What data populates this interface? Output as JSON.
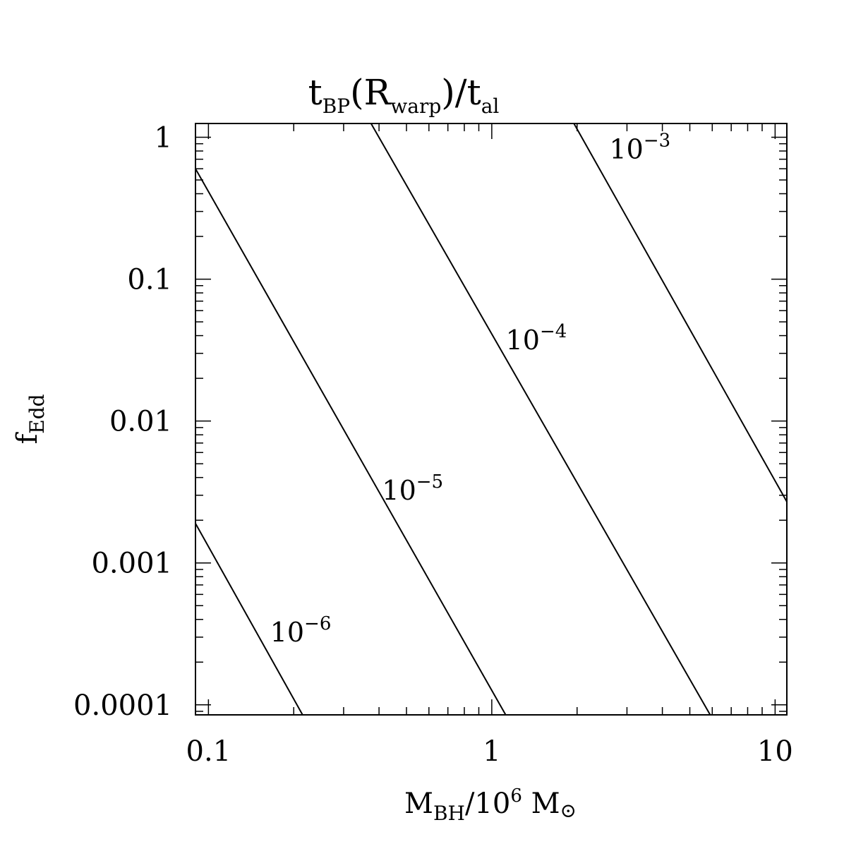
{
  "chart_data": {
    "type": "line",
    "title": {
      "base": "t",
      "sub1": "BP",
      "mid": "(R",
      "sub2": "warp",
      "end": ")/t",
      "sub3": "al"
    },
    "xlabel": {
      "base": "M",
      "sub": "BH",
      "mid": "/10",
      "sup": "6",
      "end": " M",
      "sun_symbol": "⊙"
    },
    "ylabel": {
      "base": "f",
      "sub": "Edd"
    },
    "x_scale": "log",
    "y_scale": "log",
    "xlim": [
      0.09,
      11
    ],
    "ylim": [
      8.5e-05,
      1.25
    ],
    "x_ticks": [
      {
        "v": 0.1,
        "label": "0.1"
      },
      {
        "v": 1,
        "label": "1"
      },
      {
        "v": 10,
        "label": "10"
      }
    ],
    "y_ticks": [
      {
        "v": 1,
        "label": "1"
      },
      {
        "v": 0.1,
        "label": "0.1"
      },
      {
        "v": 0.01,
        "label": "0.01"
      },
      {
        "v": 0.001,
        "label": "0.001"
      },
      {
        "v": 0.0001,
        "label": "0.0001"
      }
    ],
    "grid": false,
    "legend": "none",
    "series": [
      {
        "label_base": "10",
        "label_exp": "−6",
        "label_at": [
          0.165,
          0.00028
        ],
        "points": [
          [
            0.09,
            0.0019
          ],
          [
            0.215,
            8.5e-05
          ]
        ]
      },
      {
        "label_base": "10",
        "label_exp": "−5",
        "label_at": [
          0.41,
          0.0028
        ],
        "points": [
          [
            0.09,
            0.6
          ],
          [
            1.12,
            8.5e-05
          ]
        ]
      },
      {
        "label_base": "10",
        "label_exp": "−4",
        "label_at": [
          1.12,
          0.032
        ],
        "points": [
          [
            0.375,
            1.25
          ],
          [
            5.9,
            8.5e-05
          ]
        ]
      },
      {
        "label_base": "10",
        "label_exp": "−3",
        "label_at": [
          2.6,
          0.71
        ],
        "points": [
          [
            1.95,
            1.25
          ],
          [
            11,
            0.0027
          ]
        ]
      }
    ]
  }
}
